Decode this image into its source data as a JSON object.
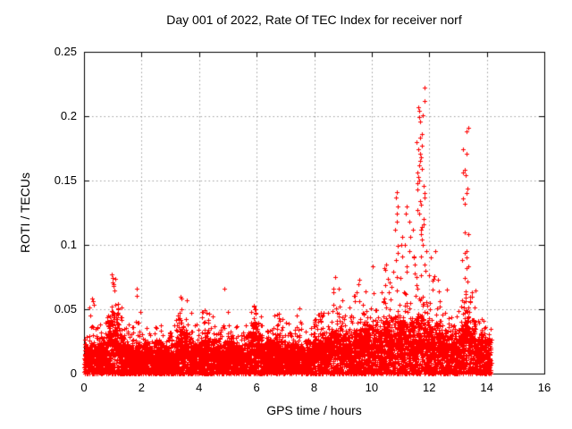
{
  "title": "Day 001 of 2022, Rate Of TEC Index for receiver norf",
  "chart_data": {
    "type": "scatter",
    "title": "Day 001 of 2022, Rate Of TEC Index for receiver norf",
    "xlabel": "GPS time / hours",
    "ylabel": "ROTI / TECUs",
    "xlim": [
      0,
      16
    ],
    "ylim": [
      0,
      0.25
    ],
    "xticks": [
      0,
      2,
      4,
      6,
      8,
      10,
      12,
      14,
      16
    ],
    "yticks": [
      0,
      0.05,
      0.1,
      0.15,
      0.2,
      0.25
    ],
    "xtick_labels": [
      "0",
      "2",
      "4",
      "6",
      "8",
      "10",
      "12",
      "14",
      "16"
    ],
    "ytick_labels": [
      "0",
      "0.05",
      "0.1",
      "0.15",
      "0.2",
      "0.25"
    ],
    "grid": true,
    "legend": "none",
    "marker": "plus",
    "marker_color": "#ff0000",
    "grid_color": "#9e9e9e",
    "axis_color": "#000000",
    "background_color": "#ffffff",
    "data_x_start": 0.0,
    "data_x_end": 14.16,
    "x_bin_width": 0.2,
    "series_name": "ROTI",
    "density_bins": [
      [
        0.0,
        0.02,
        0.032
      ],
      [
        0.2,
        0.022,
        0.06
      ],
      [
        0.4,
        0.022,
        0.048
      ],
      [
        0.6,
        0.024,
        0.04
      ],
      [
        0.8,
        0.04,
        0.058
      ],
      [
        1.0,
        0.045,
        0.077
      ],
      [
        1.2,
        0.03,
        0.055
      ],
      [
        1.4,
        0.022,
        0.04
      ],
      [
        1.6,
        0.02,
        0.038
      ],
      [
        1.8,
        0.022,
        0.066
      ],
      [
        2.0,
        0.022,
        0.036
      ],
      [
        2.2,
        0.02,
        0.032
      ],
      [
        2.4,
        0.022,
        0.036
      ],
      [
        2.6,
        0.022,
        0.038
      ],
      [
        2.8,
        0.02,
        0.034
      ],
      [
        3.0,
        0.022,
        0.038
      ],
      [
        3.2,
        0.035,
        0.06
      ],
      [
        3.4,
        0.032,
        0.062
      ],
      [
        3.6,
        0.025,
        0.05
      ],
      [
        3.8,
        0.022,
        0.042
      ],
      [
        4.0,
        0.025,
        0.053
      ],
      [
        4.2,
        0.028,
        0.05
      ],
      [
        4.4,
        0.025,
        0.045
      ],
      [
        4.6,
        0.022,
        0.04
      ],
      [
        4.8,
        0.022,
        0.05
      ],
      [
        5.0,
        0.025,
        0.044
      ],
      [
        5.2,
        0.022,
        0.038
      ],
      [
        5.4,
        0.02,
        0.036
      ],
      [
        5.6,
        0.025,
        0.042
      ],
      [
        5.8,
        0.038,
        0.054
      ],
      [
        6.0,
        0.03,
        0.048
      ],
      [
        6.2,
        0.022,
        0.04
      ],
      [
        6.4,
        0.025,
        0.048
      ],
      [
        6.6,
        0.028,
        0.055
      ],
      [
        6.8,
        0.025,
        0.045
      ],
      [
        7.0,
        0.022,
        0.04
      ],
      [
        7.2,
        0.022,
        0.038
      ],
      [
        7.4,
        0.022,
        0.045
      ],
      [
        7.6,
        0.02,
        0.034
      ],
      [
        7.8,
        0.025,
        0.04
      ],
      [
        8.0,
        0.03,
        0.046
      ],
      [
        8.2,
        0.03,
        0.05
      ],
      [
        8.4,
        0.028,
        0.048
      ],
      [
        8.6,
        0.032,
        0.066
      ],
      [
        8.8,
        0.035,
        0.07
      ],
      [
        9.0,
        0.028,
        0.05
      ],
      [
        9.2,
        0.03,
        0.068
      ],
      [
        9.4,
        0.032,
        0.075
      ],
      [
        9.6,
        0.035,
        0.07
      ],
      [
        9.8,
        0.035,
        0.068
      ],
      [
        10.0,
        0.035,
        0.072
      ],
      [
        10.2,
        0.032,
        0.065
      ],
      [
        10.4,
        0.04,
        0.082
      ],
      [
        10.6,
        0.038,
        0.08
      ],
      [
        10.8,
        0.042,
        0.1
      ],
      [
        11.0,
        0.04,
        0.095
      ],
      [
        11.2,
        0.038,
        0.09
      ],
      [
        11.4,
        0.04,
        0.1
      ],
      [
        11.6,
        0.045,
        0.12
      ],
      [
        11.8,
        0.04,
        0.1
      ],
      [
        12.0,
        0.035,
        0.08
      ],
      [
        12.2,
        0.038,
        0.075
      ],
      [
        12.4,
        0.03,
        0.055
      ],
      [
        12.6,
        0.028,
        0.065
      ],
      [
        12.8,
        0.025,
        0.048
      ],
      [
        13.0,
        0.035,
        0.06
      ],
      [
        13.2,
        0.048,
        0.095
      ],
      [
        13.4,
        0.04,
        0.07
      ],
      [
        13.6,
        0.025,
        0.042
      ],
      [
        13.8,
        0.028,
        0.045
      ],
      [
        14.0,
        0.026,
        0.038
      ]
    ],
    "clusters": [
      {
        "x_min": 11.55,
        "x_max": 11.85,
        "ys": [
          0.222,
          0.212,
          0.207,
          0.204,
          0.201,
          0.199,
          0.196,
          0.186,
          0.183,
          0.18,
          0.177,
          0.174,
          0.171,
          0.168,
          0.165,
          0.162,
          0.159,
          0.156,
          0.153,
          0.15,
          0.148,
          0.146,
          0.143,
          0.14,
          0.137,
          0.134,
          0.131,
          0.127,
          0.124,
          0.12,
          0.116,
          0.112,
          0.108,
          0.104,
          0.1
        ]
      },
      {
        "x_min": 10.78,
        "x_max": 11.05,
        "ys": [
          0.141,
          0.137,
          0.13,
          0.124,
          0.118,
          0.112,
          0.106,
          0.1,
          0.094,
          0.088
        ]
      },
      {
        "x_min": 11.15,
        "x_max": 11.5,
        "ys": [
          0.13,
          0.124,
          0.118,
          0.112,
          0.106,
          0.1,
          0.095,
          0.09
        ]
      },
      {
        "x_min": 13.15,
        "x_max": 13.35,
        "ys": [
          0.191,
          0.188,
          0.174,
          0.171,
          0.158,
          0.156,
          0.154,
          0.144,
          0.14,
          0.136,
          0.132,
          0.11,
          0.108,
          0.095,
          0.088,
          0.082
        ]
      }
    ],
    "singles": [
      [
        0.28,
        0.058
      ],
      [
        0.3,
        0.056
      ],
      [
        0.97,
        0.077
      ],
      [
        0.99,
        0.074
      ],
      [
        1.0,
        0.071
      ],
      [
        1.02,
        0.068
      ],
      [
        1.83,
        0.066
      ],
      [
        3.35,
        0.06
      ],
      [
        3.38,
        0.058
      ],
      [
        4.88,
        0.066
      ],
      [
        5.9,
        0.052
      ],
      [
        5.95,
        0.05
      ],
      [
        7.48,
        0.051
      ],
      [
        8.67,
        0.066
      ],
      [
        8.73,
        0.075
      ],
      [
        10.03,
        0.083
      ],
      [
        10.45,
        0.082
      ],
      [
        10.5,
        0.085
      ],
      [
        11.9,
        0.095
      ],
      [
        12.05,
        0.09
      ],
      [
        12.2,
        0.095
      ],
      [
        12.61,
        0.065
      ],
      [
        13.23,
        0.094
      ]
    ]
  }
}
